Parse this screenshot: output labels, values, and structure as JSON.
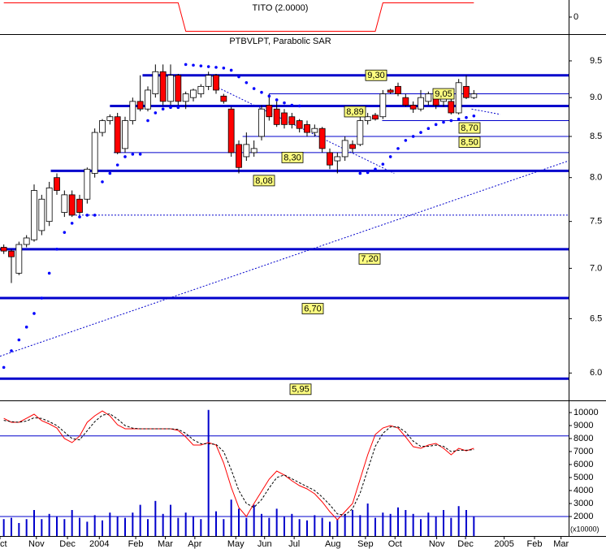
{
  "chart_data": [
    {
      "type": "line",
      "title": "TITO (2.0000)",
      "ylim": [
        -1.2,
        1.2
      ],
      "yticks": [
        0
      ],
      "series": [
        {
          "color": "#ff0000",
          "values": [
            1,
            1,
            1,
            1,
            1,
            1,
            1,
            1,
            1,
            1,
            1,
            1,
            1,
            1,
            1,
            1,
            1,
            1,
            1,
            1,
            1,
            1,
            1,
            1,
            -1,
            -1,
            -1,
            -1,
            -1,
            -1,
            -1,
            -1,
            -1,
            -1,
            -1,
            -1,
            -1,
            -1,
            -1,
            -1,
            -1,
            -1,
            -1,
            -1,
            -1,
            -1,
            -1,
            -1,
            -1,
            -1,
            1,
            1,
            1,
            1,
            1,
            1,
            1,
            1,
            1,
            1,
            1,
            1,
            1
          ]
        }
      ]
    },
    {
      "type": "candlestick",
      "title": "PTBVLPT, Parabolic SAR",
      "log_scale": true,
      "ylim": [
        5.77,
        9.87
      ],
      "yticks": [
        {
          "value": 6,
          "label": "6.0"
        },
        6.5,
        {
          "value": 7,
          "label": "7.0"
        },
        7.5,
        {
          "value": 8,
          "label": "8.0"
        },
        8.5,
        {
          "value": 9,
          "label": "9.0"
        },
        9.5
      ],
      "xlim": [
        -0.5,
        74.5
      ],
      "x": [
        0,
        1,
        2,
        3,
        4,
        5,
        6,
        7,
        8,
        9,
        10,
        11,
        12,
        13,
        14,
        15,
        16,
        17,
        18,
        19,
        20,
        21,
        22,
        23,
        24,
        25,
        26,
        27,
        28,
        29,
        30,
        31,
        32,
        33,
        34,
        35,
        36,
        37,
        38,
        39,
        40,
        41,
        42,
        43,
        44,
        45,
        46,
        47,
        48,
        49,
        50,
        51,
        52,
        53,
        54,
        55,
        56,
        57,
        58,
        59,
        60,
        61,
        62
      ],
      "open": [
        7.22,
        7.18,
        6.95,
        7.25,
        7.3,
        7.4,
        7.5,
        8.0,
        7.6,
        7.8,
        7.75,
        7.75,
        8.05,
        8.55,
        8.7,
        8.75,
        8.35,
        8.7,
        8.95,
        8.85,
        9.05,
        9.35,
        8.95,
        9.3,
        8.95,
        9.0,
        9.05,
        9.15,
        9.3,
        9.02,
        8.85,
        8.4,
        8.25,
        8.3,
        8.5,
        8.9,
        8.85,
        8.8,
        8.75,
        8.7,
        8.65,
        8.55,
        8.6,
        8.3,
        8.2,
        8.25,
        8.4,
        8.4,
        8.7,
        8.77,
        8.75,
        9.1,
        9.15,
        9.0,
        8.9,
        8.85,
        8.95,
        9.0,
        8.95,
        8.95,
        8.8,
        9.15,
        9.0
      ],
      "high": [
        7.25,
        7.2,
        7.28,
        7.35,
        7.92,
        7.8,
        7.95,
        8.05,
        7.85,
        7.85,
        7.8,
        8.12,
        8.6,
        8.72,
        8.78,
        8.8,
        8.75,
        9.0,
        9.3,
        9.15,
        9.45,
        9.45,
        9.45,
        9.32,
        9.08,
        9.12,
        9.18,
        9.35,
        9.32,
        9.05,
        8.88,
        8.45,
        8.55,
        8.45,
        8.9,
        9.05,
        8.95,
        8.85,
        8.8,
        8.72,
        8.7,
        8.65,
        8.62,
        8.35,
        8.3,
        8.5,
        8.45,
        8.75,
        8.8,
        8.8,
        9.1,
        9.12,
        9.2,
        9.05,
        8.95,
        9.1,
        9.08,
        9.05,
        9.02,
        9.0,
        9.25,
        9.3,
        9.1
      ],
      "low": [
        7.15,
        6.85,
        6.93,
        7.22,
        7.28,
        7.35,
        7.45,
        7.8,
        7.55,
        7.55,
        7.58,
        7.7,
        8.0,
        8.5,
        8.65,
        8.28,
        8.3,
        8.65,
        8.82,
        8.82,
        9.0,
        8.9,
        8.9,
        8.9,
        8.85,
        8.95,
        9.0,
        9.1,
        9.05,
        8.92,
        8.25,
        8.05,
        8.2,
        8.25,
        8.45,
        8.7,
        8.62,
        8.6,
        8.6,
        8.55,
        8.5,
        8.5,
        8.3,
        8.1,
        8.05,
        8.2,
        8.3,
        8.38,
        8.65,
        8.7,
        8.72,
        9.05,
        9.02,
        8.88,
        8.8,
        8.82,
        8.9,
        8.85,
        8.88,
        8.78,
        8.78,
        8.98,
        8.98
      ],
      "close": [
        7.18,
        7.12,
        7.25,
        7.32,
        7.85,
        7.75,
        7.88,
        7.85,
        7.8,
        7.57,
        7.6,
        8.1,
        8.55,
        8.7,
        8.75,
        8.3,
        8.7,
        8.95,
        8.85,
        9.1,
        9.35,
        8.95,
        9.3,
        8.95,
        9.05,
        9.1,
        9.15,
        9.3,
        9.1,
        8.95,
        8.3,
        8.12,
        8.4,
        8.35,
        8.85,
        8.75,
        8.65,
        8.65,
        8.65,
        8.6,
        8.55,
        8.6,
        8.35,
        8.15,
        8.25,
        8.45,
        8.35,
        8.7,
        8.75,
        8.72,
        9.05,
        9.07,
        9.05,
        8.9,
        8.85,
        9.0,
        9.05,
        8.9,
        9.0,
        8.8,
        9.2,
        9.0,
        9.05
      ],
      "up_color": "#ffffff",
      "down_color": "#ff0000",
      "sar": [
        6.05,
        6.2,
        6.3,
        6.42,
        6.55,
        6.7,
        6.95,
        7.2,
        7.38,
        7.48,
        7.55,
        7.57,
        7.57,
        7.95,
        8.05,
        8.15,
        8.25,
        8.28,
        8.28,
        8.7,
        8.8,
        8.85,
        8.87,
        8.87,
        9.45,
        9.44,
        9.43,
        9.42,
        9.41,
        9.4,
        9.37,
        9.28,
        9.2,
        9.12,
        9.07,
        9.02,
        8.97,
        8.93,
        8.9,
        8.89,
        null,
        null,
        null,
        null,
        null,
        null,
        null,
        8.05,
        8.06,
        8.1,
        8.16,
        8.25,
        8.35,
        8.45,
        8.5,
        8.55,
        8.6,
        8.65,
        8.68,
        8.7,
        8.72,
        8.74,
        8.76
      ],
      "sar_color": "#0000ff",
      "level_color": "#0000cc",
      "levels": [
        {
          "value": 9.3,
          "label": "9,30",
          "from": 18.3,
          "thick": true
        },
        {
          "value": 9.05,
          "label": "9,05",
          "from": 35.0,
          "thick": false
        },
        {
          "value": 8.89,
          "label": "8,89",
          "from": 14.0,
          "thick": true
        },
        {
          "value": 8.7,
          "label": "8,70",
          "from": 49.9,
          "thick": false
        },
        {
          "value": 8.5,
          "label": "8,50",
          "from": 31.5,
          "thick": false
        },
        {
          "value": 8.3,
          "label": "8,30",
          "from": 14.5,
          "thick": false
        },
        {
          "value": 8.08,
          "label": "8,08",
          "from": 6.2,
          "thick": true
        },
        {
          "value": 7.2,
          "label": "7,20",
          "from": -0.5,
          "thick": true
        },
        {
          "value": 6.7,
          "label": "6,70",
          "from": -0.5,
          "thick": true
        },
        {
          "value": 5.95,
          "label": "5,95",
          "from": -0.5,
          "thick": true
        }
      ],
      "dashed_levels": [
        {
          "value": 7.57,
          "from": 8.6
        }
      ],
      "trendlines": [
        {
          "x": [
            -0.5,
            74.5
          ],
          "y": [
            6.15,
            8.2
          ]
        },
        {
          "x": [
            27.9,
            51.5
          ],
          "y": [
            9.15,
            8.05
          ]
        },
        {
          "x": [
            61.7,
            65.5
          ],
          "y": [
            8.85,
            8.78
          ]
        }
      ]
    },
    {
      "type": "bar",
      "ylim": [
        500,
        10750
      ],
      "yticks": [
        2000,
        3000,
        4000,
        5000,
        6000,
        7000,
        8000,
        9000,
        10000
      ],
      "unit_label": "(x10000)",
      "color": "#0000cc",
      "values": [
        1800,
        1900,
        1500,
        1800,
        2500,
        1800,
        2200,
        2000,
        1800,
        2500,
        1900,
        1600,
        2100,
        1700,
        2300,
        2000,
        1900,
        2300,
        2900,
        1800,
        3200,
        2200,
        2900,
        1900,
        2300,
        2000,
        1800,
        10200,
        2400,
        1800,
        3300,
        2600,
        1900,
        2900,
        2200,
        1900,
        2600,
        2000,
        2200,
        1800,
        1700,
        2100,
        1900,
        1600,
        1800,
        2200,
        2500,
        2100,
        3000,
        1900,
        2300,
        2200,
        2700,
        2500,
        2200,
        1800,
        2300,
        2000,
        2500,
        1900,
        2800,
        2500,
        2000
      ],
      "series": [
        {
          "color": "#ff0000",
          "dashed": false,
          "values": [
            9560,
            9250,
            9250,
            9560,
            9875,
            9375,
            9125,
            8810,
            8000,
            7690,
            8190,
            9250,
            9750,
            10125,
            9750,
            9060,
            8750,
            8750,
            8750,
            8750,
            8750,
            8750,
            8750,
            8625,
            8125,
            7500,
            7500,
            7690,
            7500,
            6125,
            4250,
            2690,
            2000,
            3000,
            3940,
            4875,
            5500,
            5190,
            4750,
            4375,
            4125,
            3750,
            3125,
            2375,
            1750,
            2375,
            3000,
            4875,
            6750,
            8310,
            8810,
            9000,
            8810,
            8125,
            7375,
            7250,
            7500,
            7625,
            7250,
            6750,
            7250,
            7060,
            7250
          ]
        },
        {
          "color": "#000000",
          "dashed": true,
          "values": [
            9400,
            9300,
            9250,
            9350,
            9600,
            9550,
            9300,
            9000,
            8500,
            8000,
            7900,
            8600,
            9300,
            9800,
            9900,
            9500,
            9000,
            8800,
            8750,
            8750,
            8750,
            8750,
            8750,
            8700,
            8400,
            7900,
            7600,
            7600,
            7550,
            7000,
            5600,
            4000,
            3000,
            2700,
            3300,
            4200,
            5000,
            5200,
            4900,
            4600,
            4300,
            4000,
            3500,
            2900,
            2200,
            2100,
            2600,
            3800,
            5600,
            7400,
            8400,
            8900,
            8900,
            8500,
            7800,
            7400,
            7400,
            7500,
            7400,
            7000,
            7100,
            7100,
            7150
          ]
        }
      ],
      "levels": [
        8200,
        2000
      ],
      "level_color": "#0000cc",
      "xticks": [
        {
          "value": -0.5,
          "label": "Oct"
        },
        {
          "value": 4.3,
          "label": "Nov"
        },
        {
          "value": 8.4,
          "label": "Dec"
        },
        {
          "value": 12.6,
          "label": "2004"
        },
        {
          "value": 17.4,
          "label": "Feb"
        },
        {
          "value": 21.3,
          "label": "Mar"
        },
        {
          "value": 25.2,
          "label": "Apr"
        },
        {
          "value": 30.6,
          "label": "May"
        },
        {
          "value": 34.4,
          "label": "Jun"
        },
        {
          "value": 38.3,
          "label": "Jul"
        },
        {
          "value": 43.4,
          "label": "Aug"
        },
        {
          "value": 47.7,
          "label": "Sep"
        },
        {
          "value": 51.6,
          "label": "Oct"
        },
        {
          "value": 57.1,
          "label": "Nov"
        },
        {
          "value": 60.9,
          "label": "Dec"
        },
        {
          "value": 66.0,
          "label": "2005"
        },
        {
          "value": 70.0,
          "label": "Feb"
        },
        {
          "value": 73.5,
          "label": "Mar"
        }
      ]
    }
  ]
}
